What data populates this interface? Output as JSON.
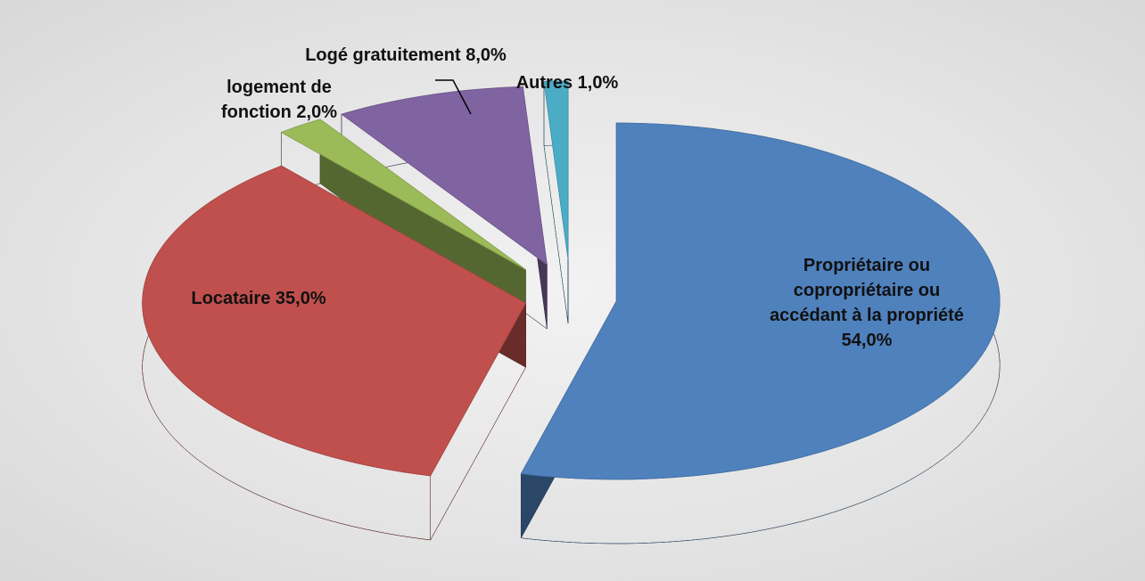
{
  "chart_data": {
    "type": "pie",
    "categories": [
      "Propriétaire ou copropriétaire ou accédant à la propriété",
      "Locataire",
      "logement de fonction",
      "Logé gratuitement",
      "Autres"
    ],
    "values": [
      54,
      35,
      2,
      8,
      1
    ],
    "value_labels": [
      "54,0%",
      "35,0%",
      "2,0%",
      "8,0%",
      "1,0%"
    ],
    "colors": [
      "#4f81bd",
      "#c0504d",
      "#9bbb59",
      "#8064a2",
      "#4bacc6"
    ]
  }
}
